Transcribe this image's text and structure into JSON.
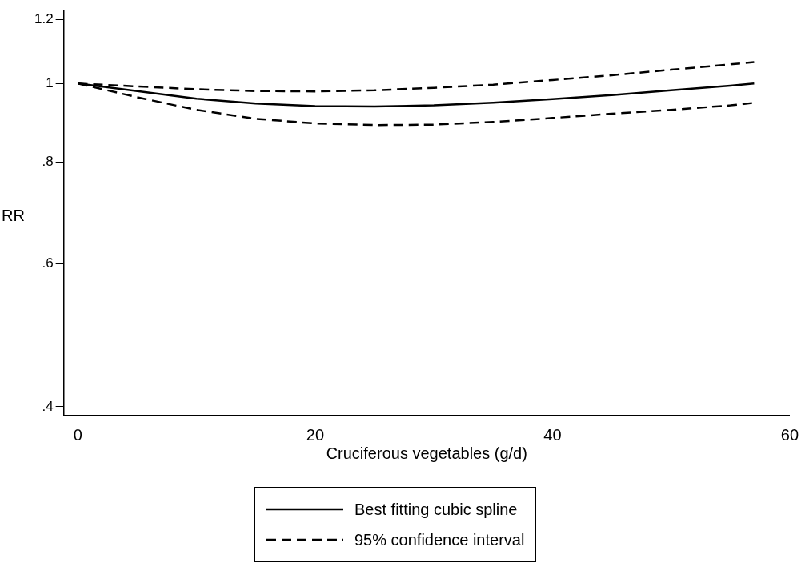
{
  "chart_data": {
    "type": "line",
    "xlabel": "Cruciferous vegetables (g/d)",
    "ylabel": "RR",
    "log": "y",
    "xlim": [
      -1.2,
      60
    ],
    "xticks": [
      0,
      20,
      40,
      60
    ],
    "ylim": [
      0.39,
      1.23
    ],
    "yticks": [
      {
        "value": 0.4,
        "label": ".4"
      },
      {
        "value": 0.6,
        "label": ".6"
      },
      {
        "value": 0.8,
        "label": ".8"
      },
      {
        "value": 1,
        "label": "1"
      },
      {
        "value": 1.2,
        "label": "1.2"
      }
    ],
    "grid": false,
    "legend": "bottom",
    "marker": "none",
    "x": [
      0,
      5,
      10,
      15,
      20,
      25,
      30,
      35,
      40,
      45,
      50,
      55,
      57
    ],
    "series": [
      {
        "name": "Best fitting cubic spline",
        "color": "#000000",
        "line_style": "solid",
        "values": [
          1.0,
          0.979,
          0.958,
          0.945,
          0.938,
          0.937,
          0.94,
          0.947,
          0.957,
          0.968,
          0.981,
          0.994,
          1.0
        ]
      },
      {
        "name": "95% confidence interval",
        "color": "#000000",
        "line_style": "dashed",
        "values": [
          1.0,
          0.992,
          0.984,
          0.979,
          0.978,
          0.981,
          0.988,
          0.997,
          1.01,
          1.024,
          1.04,
          1.056,
          1.063
        ]
      },
      {
        "color": "#000000",
        "line_style": "dashed",
        "values": [
          1.0,
          0.962,
          0.928,
          0.905,
          0.893,
          0.889,
          0.89,
          0.897,
          0.907,
          0.918,
          0.928,
          0.94,
          0.947
        ]
      }
    ]
  }
}
